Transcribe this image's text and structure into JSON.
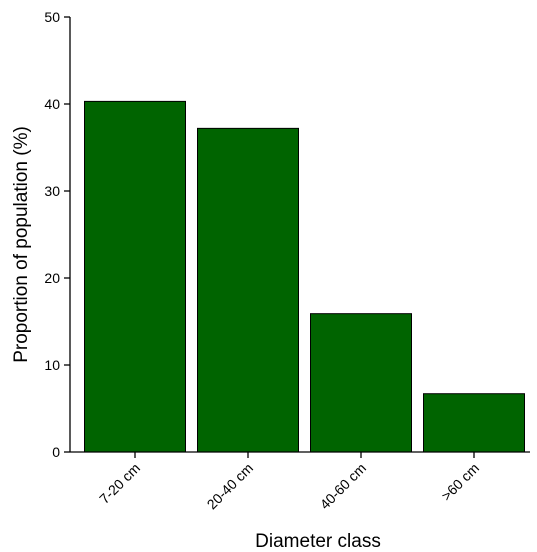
{
  "chart_data": {
    "type": "bar",
    "title": "",
    "xlabel": "Diameter class",
    "ylabel": "Proportion of population (%)",
    "categories": [
      "7-20 cm",
      "20-40 cm",
      "40-60 cm",
      ">60 cm"
    ],
    "values": [
      40.3,
      37.2,
      15.9,
      6.7
    ],
    "ylim": [
      0,
      50
    ],
    "yticks": [
      0,
      10,
      20,
      30,
      40,
      50
    ],
    "grid": false,
    "legend": "none",
    "bar_color": "#006400",
    "bar_edge_color": "#000000"
  }
}
